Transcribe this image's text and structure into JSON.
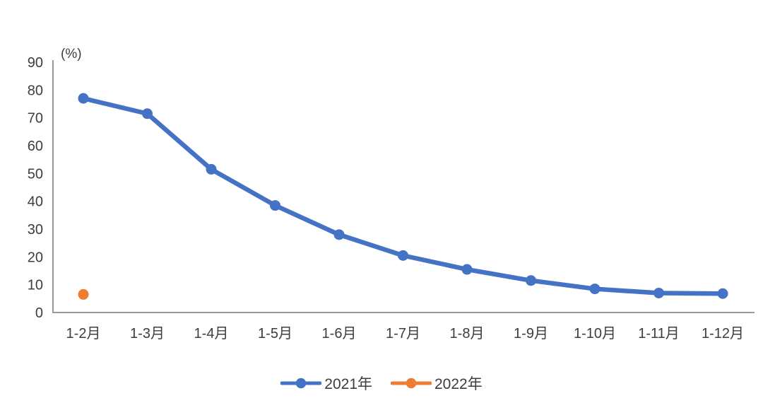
{
  "chart_data": {
    "type": "line",
    "title": "",
    "xlabel": "",
    "ylabel": "(%)",
    "ylim": [
      0,
      90
    ],
    "y_ticks": [
      0,
      10,
      20,
      30,
      40,
      50,
      60,
      70,
      80,
      90
    ],
    "grid": false,
    "legend_position": "bottom",
    "categories": [
      "1-2月",
      "1-3月",
      "1-4月",
      "1-5月",
      "1-6月",
      "1-7月",
      "1-8月",
      "1-9月",
      "1-10月",
      "1-11月",
      "1-12月"
    ],
    "series": [
      {
        "name": "2021年",
        "color": "#4472C4",
        "values": [
          77,
          71.5,
          51.5,
          38.5,
          28,
          20.5,
          15.5,
          11.5,
          8.5,
          7,
          6.8
        ]
      },
      {
        "name": "2022年",
        "color": "#ED7D31",
        "values": [
          6.5,
          null,
          null,
          null,
          null,
          null,
          null,
          null,
          null,
          null,
          null
        ]
      }
    ]
  },
  "colors": {
    "axis": "#9a9a9a",
    "tick_text": "#3d3d3d",
    "background": "#ffffff"
  }
}
